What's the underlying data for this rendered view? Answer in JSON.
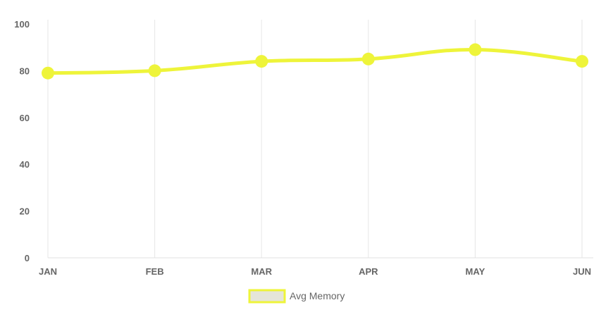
{
  "chart_data": {
    "type": "line",
    "categories": [
      "JAN",
      "FEB",
      "MAR",
      "APR",
      "MAY",
      "JUN"
    ],
    "series": [
      {
        "name": "Avg Memory",
        "values": [
          79,
          80,
          84,
          85,
          89,
          84
        ],
        "color": "#eef43a",
        "legend_fill": "#e5e5d9"
      }
    ],
    "ylim": [
      0,
      100
    ],
    "yticks": [
      "0",
      "20",
      "40",
      "60",
      "80",
      "100"
    ],
    "grid": "vertical",
    "legend": "bottom-center",
    "smooth": true
  }
}
